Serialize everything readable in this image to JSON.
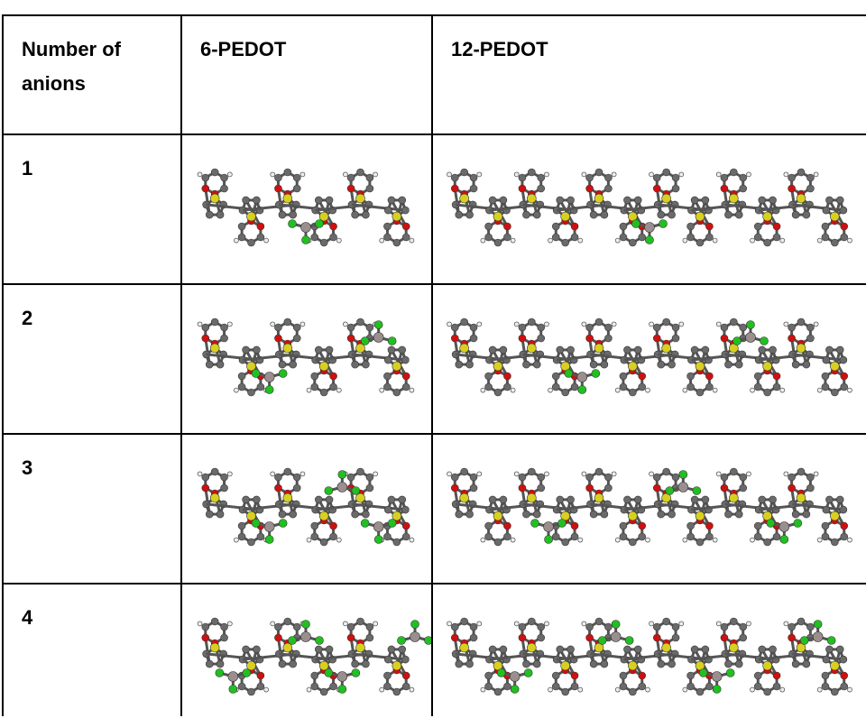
{
  "table": {
    "header": [
      "Number of anions",
      "6-PEDOT",
      "12-PEDOT"
    ],
    "rows": [
      [
        "1"
      ],
      [
        "2"
      ],
      [
        "3"
      ],
      [
        "4"
      ]
    ]
  }
}
